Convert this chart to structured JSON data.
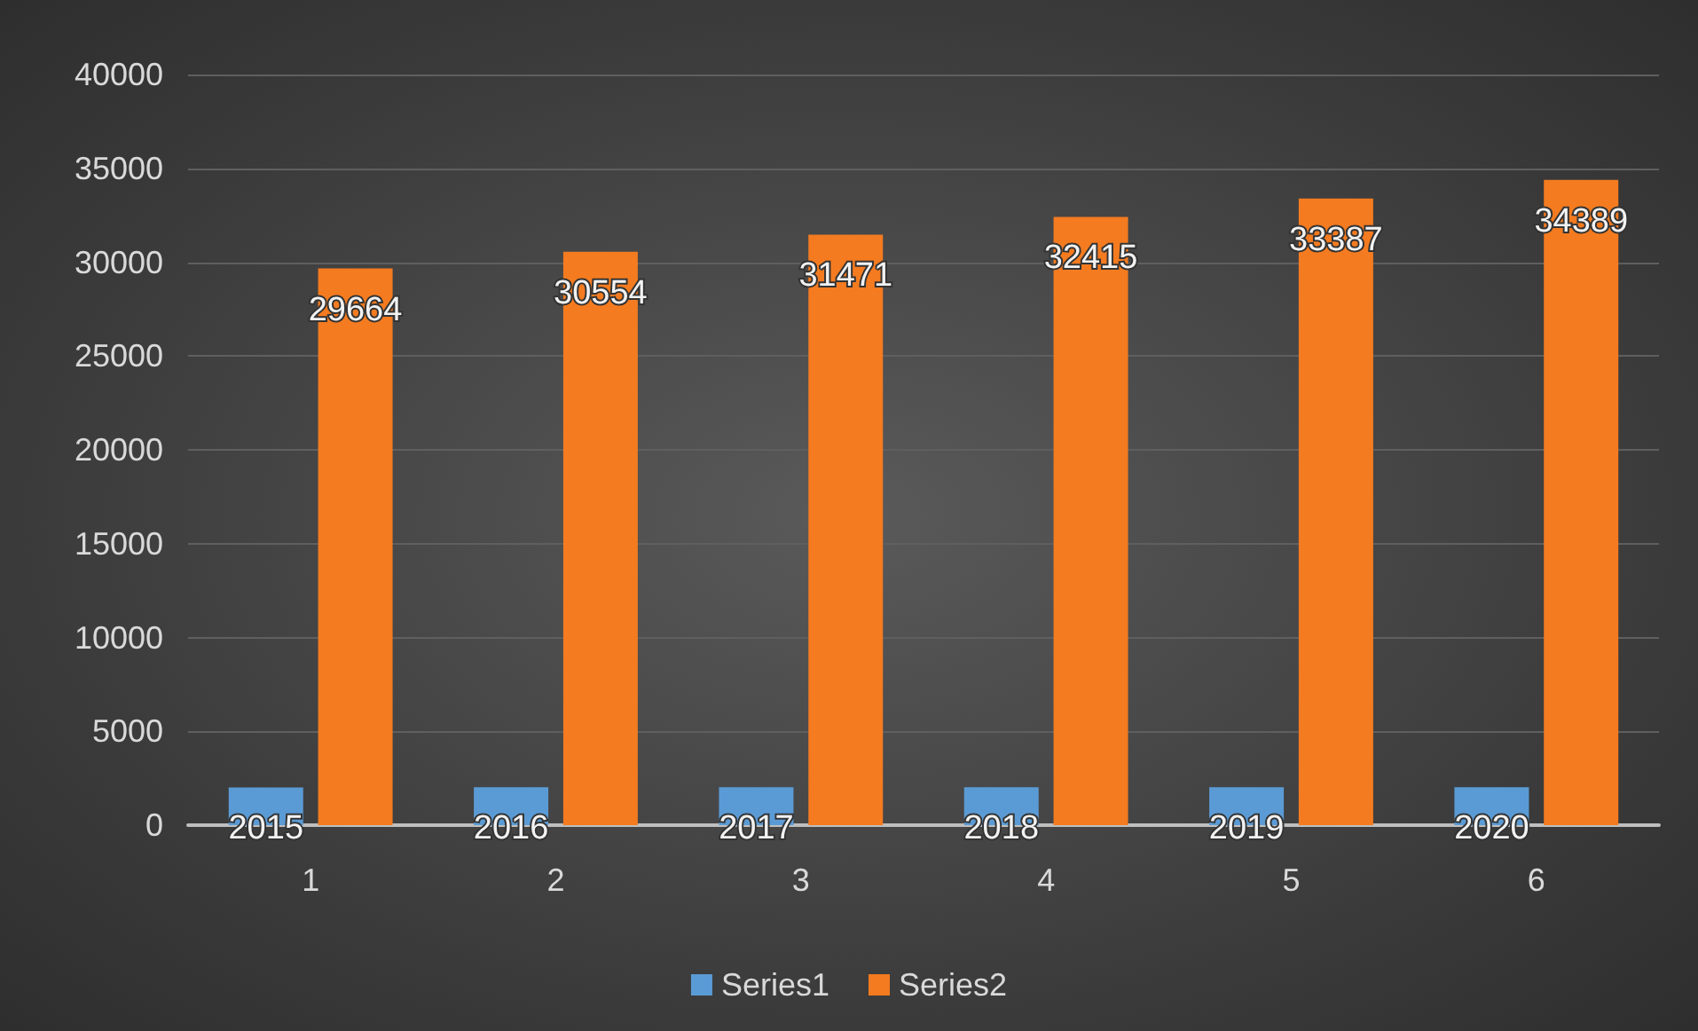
{
  "chart_data": {
    "type": "bar",
    "categories": [
      "1",
      "2",
      "3",
      "4",
      "5",
      "6"
    ],
    "series": [
      {
        "name": "Series1",
        "color": "#5b9bd5",
        "values": [
          2015,
          2016,
          2017,
          2018,
          2019,
          2020
        ]
      },
      {
        "name": "Series2",
        "color": "#f47b20",
        "values": [
          29664,
          30554,
          31471,
          32415,
          33387,
          34389
        ]
      }
    ],
    "ylim": [
      0,
      40000
    ],
    "yticks": [
      0,
      5000,
      10000,
      15000,
      20000,
      25000,
      30000,
      35000,
      40000
    ],
    "grid": "y",
    "legend": "bottom",
    "data_labels": true
  }
}
